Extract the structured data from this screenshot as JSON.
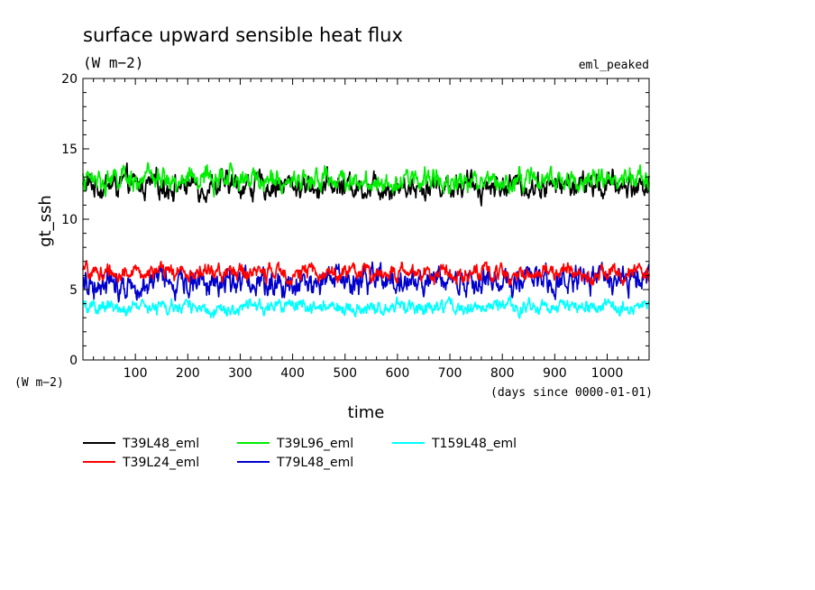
{
  "chart_data": {
    "type": "line",
    "title": "surface upward sensible heat flux",
    "subtitle": "(W m−2)",
    "annotation": "eml_peaked",
    "ylabel": "gt_ssh",
    "yunit": "(W m−2)",
    "xlabel": "time",
    "xunit": "(days since 0000-01-01)",
    "xlim": [
      0,
      1080
    ],
    "ylim": [
      0,
      20
    ],
    "xticks": [
      100,
      200,
      300,
      400,
      500,
      600,
      700,
      800,
      900,
      1000
    ],
    "yticks": [
      0,
      5,
      10,
      15,
      20
    ],
    "legend_position": "bottom",
    "series": [
      {
        "name": "T39L48_eml",
        "color": "#000000",
        "mean": 12.4,
        "amplitude": 0.9
      },
      {
        "name": "T39L24_eml",
        "color": "#ff0000",
        "mean": 6.2,
        "amplitude": 0.6
      },
      {
        "name": "T39L96_eml",
        "color": "#00ee00",
        "mean": 12.8,
        "amplitude": 0.8
      },
      {
        "name": "T79L48_eml",
        "color": "#0000cc",
        "mean": 5.6,
        "amplitude": 1.0
      },
      {
        "name": "T159L48_eml",
        "color": "#00ffff",
        "mean": 3.7,
        "amplitude": 0.5
      }
    ]
  }
}
